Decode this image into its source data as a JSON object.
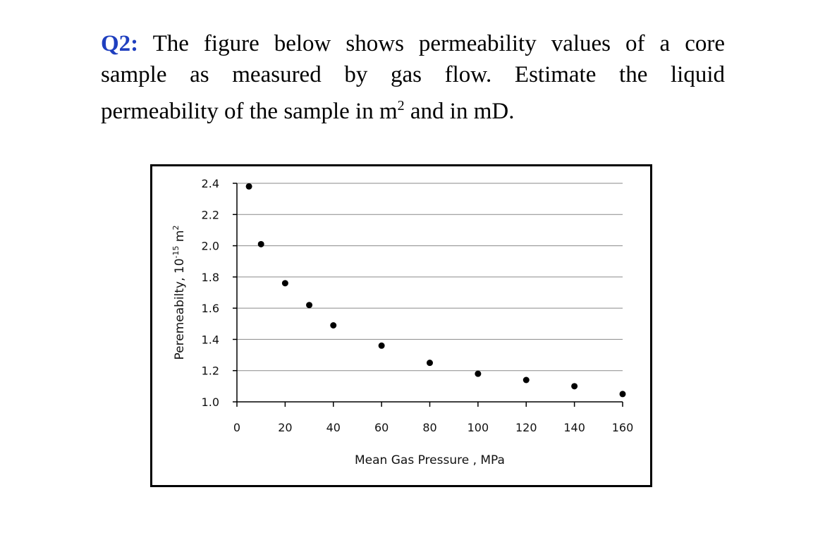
{
  "question": {
    "label": "Q2:",
    "line1_text": "The figure below shows permeability values of a core",
    "line2_a": "sample as measured by gas flow.",
    "line2_b": "Estimate the liquid",
    "line3_a": "permeability of the sample in m",
    "line3_sup": "2",
    "line3_b": " and in mD."
  },
  "chart_data": {
    "type": "scatter",
    "xlabel": "Mean Gas Pressure , MPa",
    "ylabel_main": "Peremeabilty, 10",
    "ylabel_exp": "-15",
    "ylabel_unit": " m",
    "ylabel_unit_exp": "2",
    "xlim": [
      0,
      160
    ],
    "ylim": [
      1.0,
      2.4
    ],
    "x_ticks": [
      "0",
      "20",
      "40",
      "60",
      "80",
      "100",
      "120",
      "140",
      "160"
    ],
    "y_ticks": [
      "1.0",
      "1.2",
      "1.4",
      "1.6",
      "1.8",
      "2.0",
      "2.2",
      "2.4"
    ],
    "grid": "horizontal",
    "points": [
      {
        "x": 5,
        "y": 2.38
      },
      {
        "x": 10,
        "y": 2.01
      },
      {
        "x": 20,
        "y": 1.76
      },
      {
        "x": 30,
        "y": 1.62
      },
      {
        "x": 40,
        "y": 1.49
      },
      {
        "x": 60,
        "y": 1.36
      },
      {
        "x": 80,
        "y": 1.25
      },
      {
        "x": 100,
        "y": 1.18
      },
      {
        "x": 120,
        "y": 1.14
      },
      {
        "x": 140,
        "y": 1.1
      },
      {
        "x": 160,
        "y": 1.05
      }
    ]
  }
}
